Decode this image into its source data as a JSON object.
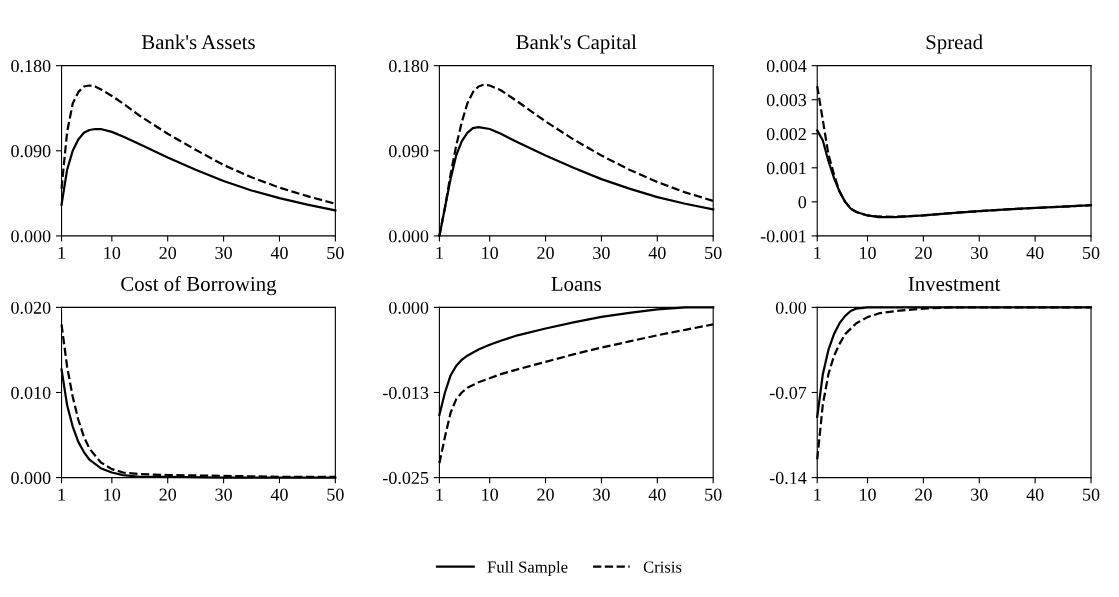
{
  "chart_data": [
    {
      "type": "line",
      "title": "Bank's Assets",
      "xlim": [
        1,
        50
      ],
      "xticks": [
        1,
        10,
        20,
        30,
        40,
        50
      ],
      "ylim": [
        0,
        0.18
      ],
      "yticks": [
        {
          "value": 0,
          "label": "0.000"
        },
        {
          "value": 0.09,
          "label": "0.090"
        },
        {
          "value": 0.18,
          "label": "0.180"
        }
      ],
      "grid": false,
      "legend": "bottom",
      "series": [
        {
          "name": "Full Sample",
          "color": "#000000",
          "line_style": "solid",
          "x": [
            1,
            2,
            3,
            4,
            5,
            6,
            7,
            8,
            10,
            12,
            15,
            20,
            25,
            30,
            35,
            40,
            45,
            50
          ],
          "values": [
            0.033,
            0.07,
            0.09,
            0.102,
            0.109,
            0.112,
            0.113,
            0.113,
            0.11,
            0.105,
            0.097,
            0.083,
            0.07,
            0.058,
            0.048,
            0.04,
            0.033,
            0.027
          ]
        },
        {
          "name": "Crisis",
          "color": "#000000",
          "line_style": "dashed",
          "x": [
            1,
            2,
            3,
            4,
            5,
            6,
            7,
            8,
            10,
            12,
            15,
            20,
            25,
            30,
            35,
            40,
            45,
            50
          ],
          "values": [
            0.05,
            0.11,
            0.14,
            0.152,
            0.158,
            0.159,
            0.158,
            0.155,
            0.148,
            0.14,
            0.127,
            0.108,
            0.091,
            0.075,
            0.062,
            0.051,
            0.042,
            0.034
          ]
        }
      ]
    },
    {
      "type": "line",
      "title": "Bank's Capital",
      "xlim": [
        1,
        50
      ],
      "xticks": [
        1,
        10,
        20,
        30,
        40,
        50
      ],
      "ylim": [
        0,
        0.18
      ],
      "yticks": [
        {
          "value": 0,
          "label": "0.000"
        },
        {
          "value": 0.09,
          "label": "0.090"
        },
        {
          "value": 0.18,
          "label": "0.180"
        }
      ],
      "grid": false,
      "series": [
        {
          "color": "#000000",
          "line_style": "solid",
          "x": [
            1,
            2,
            3,
            4,
            5,
            6,
            7,
            8,
            10,
            12,
            15,
            20,
            25,
            30,
            35,
            40,
            45,
            50
          ],
          "values": [
            0.0,
            0.03,
            0.06,
            0.085,
            0.1,
            0.109,
            0.114,
            0.115,
            0.113,
            0.108,
            0.099,
            0.085,
            0.072,
            0.06,
            0.05,
            0.041,
            0.034,
            0.028
          ]
        },
        {
          "color": "#000000",
          "line_style": "dashed",
          "x": [
            1,
            2,
            3,
            4,
            5,
            6,
            7,
            8,
            9,
            10,
            12,
            15,
            20,
            25,
            30,
            35,
            40,
            45,
            50
          ],
          "values": [
            0.0,
            0.03,
            0.065,
            0.095,
            0.12,
            0.14,
            0.152,
            0.158,
            0.16,
            0.159,
            0.154,
            0.142,
            0.121,
            0.102,
            0.085,
            0.07,
            0.057,
            0.046,
            0.037
          ]
        }
      ]
    },
    {
      "type": "line",
      "title": "Spread",
      "xlim": [
        1,
        50
      ],
      "xticks": [
        1,
        10,
        20,
        30,
        40,
        50
      ],
      "ylim": [
        -0.001,
        0.004
      ],
      "yticks": [
        -0.001,
        0,
        0.001,
        0.002,
        0.003,
        0.004
      ],
      "grid": false,
      "series": [
        {
          "color": "#000000",
          "line_style": "solid",
          "x": [
            1,
            2,
            3,
            4,
            5,
            6,
            7,
            8,
            10,
            12,
            15,
            20,
            25,
            30,
            35,
            40,
            45,
            50
          ],
          "values": [
            0.0021,
            0.0018,
            0.0012,
            0.0007,
            0.0003,
            0.0,
            -0.0002,
            -0.0003,
            -0.0004,
            -0.00045,
            -0.00045,
            -0.0004,
            -0.00033,
            -0.00027,
            -0.00022,
            -0.00018,
            -0.00014,
            -0.0001
          ]
        },
        {
          "color": "#000000",
          "line_style": "dashed",
          "x": [
            1,
            2,
            3,
            4,
            5,
            6,
            7,
            8,
            10,
            12,
            15,
            20,
            25,
            30,
            35,
            40,
            45,
            50
          ],
          "values": [
            0.0034,
            0.0024,
            0.0014,
            0.0008,
            0.0003,
            0.0,
            -0.0002,
            -0.0003,
            -0.0004,
            -0.00043,
            -0.00044,
            -0.0004,
            -0.00033,
            -0.00027,
            -0.00022,
            -0.00018,
            -0.00014,
            -0.0001
          ]
        }
      ]
    },
    {
      "type": "line",
      "title": "Cost of Borrowing",
      "xlim": [
        1,
        50
      ],
      "xticks": [
        1,
        10,
        20,
        30,
        40,
        50
      ],
      "ylim": [
        0,
        0.02
      ],
      "yticks": [
        {
          "value": 0,
          "label": "0.000"
        },
        {
          "value": 0.01,
          "label": "0.010"
        },
        {
          "value": 0.02,
          "label": "0.020"
        }
      ],
      "grid": false,
      "series": [
        {
          "color": "#000000",
          "line_style": "solid",
          "x": [
            1,
            2,
            3,
            4,
            5,
            6,
            8,
            10,
            12,
            15,
            20,
            30,
            50
          ],
          "values": [
            0.0127,
            0.0085,
            0.006,
            0.0042,
            0.003,
            0.0021,
            0.0011,
            0.0006,
            0.0003,
            0.0001,
            0.0001,
            0.0,
            0.0
          ]
        },
        {
          "color": "#000000",
          "line_style": "dashed",
          "x": [
            1,
            2,
            3,
            4,
            5,
            6,
            8,
            10,
            12,
            15,
            20,
            30,
            40,
            50
          ],
          "values": [
            0.018,
            0.013,
            0.0095,
            0.0068,
            0.0048,
            0.0034,
            0.0018,
            0.001,
            0.0006,
            0.0004,
            0.0003,
            0.0002,
            0.0001,
            0.0001
          ]
        }
      ]
    },
    {
      "type": "line",
      "title": "Loans",
      "xlim": [
        1,
        50
      ],
      "xticks": [
        1,
        10,
        20,
        30,
        40,
        50
      ],
      "ylim": [
        -0.025,
        0
      ],
      "yticks": [
        {
          "value": -0.025,
          "label": "-0.025"
        },
        {
          "value": -0.0125,
          "label": "-0.013"
        },
        {
          "value": 0,
          "label": "0.000"
        }
      ],
      "grid": false,
      "series": [
        {
          "color": "#000000",
          "line_style": "solid",
          "x": [
            1,
            2,
            3,
            4,
            5,
            6,
            8,
            10,
            12,
            15,
            20,
            25,
            30,
            35,
            40,
            45,
            50
          ],
          "values": [
            -0.0158,
            -0.0125,
            -0.01,
            -0.0086,
            -0.0077,
            -0.0071,
            -0.0062,
            -0.0055,
            -0.0049,
            -0.0041,
            -0.0031,
            -0.0022,
            -0.0014,
            -0.0008,
            -0.0003,
            0.0,
            0.0
          ]
        },
        {
          "color": "#000000",
          "line_style": "dashed",
          "x": [
            1,
            2,
            3,
            4,
            5,
            6,
            8,
            10,
            12,
            15,
            20,
            25,
            30,
            35,
            40,
            45,
            50
          ],
          "values": [
            -0.0229,
            -0.019,
            -0.0155,
            -0.0135,
            -0.0125,
            -0.0118,
            -0.011,
            -0.0104,
            -0.0098,
            -0.0091,
            -0.008,
            -0.0069,
            -0.0059,
            -0.005,
            -0.0041,
            -0.0033,
            -0.0025
          ]
        }
      ]
    },
    {
      "type": "line",
      "title": "Investment",
      "xlim": [
        1,
        50
      ],
      "xticks": [
        1,
        10,
        20,
        30,
        40,
        50
      ],
      "ylim": [
        -0.14,
        0
      ],
      "yticks": [
        {
          "value": -0.14,
          "label": "-0.14"
        },
        {
          "value": -0.07,
          "label": "-0.07"
        },
        {
          "value": 0,
          "label": "0.00"
        }
      ],
      "grid": false,
      "series": [
        {
          "color": "#000000",
          "line_style": "solid",
          "x": [
            1,
            2,
            3,
            4,
            5,
            6,
            7,
            8,
            10,
            50
          ],
          "values": [
            -0.09,
            -0.055,
            -0.035,
            -0.022,
            -0.013,
            -0.007,
            -0.003,
            -0.001,
            0.0,
            0.0
          ]
        },
        {
          "color": "#000000",
          "line_style": "dashed",
          "x": [
            1,
            2,
            3,
            4,
            5,
            6,
            8,
            10,
            12,
            15,
            20,
            25,
            50
          ],
          "values": [
            -0.125,
            -0.08,
            -0.055,
            -0.04,
            -0.03,
            -0.022,
            -0.013,
            -0.008,
            -0.005,
            -0.003,
            -0.001,
            0.0,
            0.0
          ]
        }
      ]
    }
  ]
}
